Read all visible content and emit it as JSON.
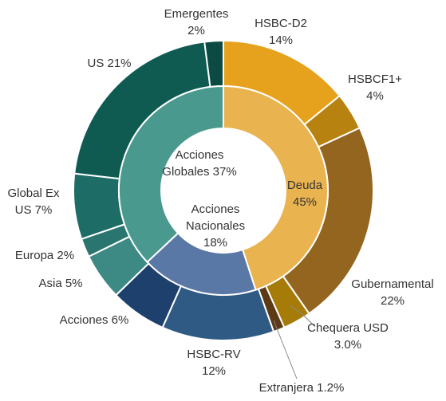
{
  "chart_data": {
    "type": "sunburst",
    "inner": {
      "labels": [
        [
          "Deuda",
          "45%"
        ],
        [
          "Acciones",
          "Nacionales",
          "18%"
        ],
        [
          "Acciones",
          "Globales 37%"
        ]
      ],
      "values": [
        45,
        18,
        37
      ],
      "colors": [
        "#E9B350",
        "#5A78A6",
        "#4A998E"
      ]
    },
    "outer": {
      "labels": [
        [
          "HSBC-D2",
          "14%"
        ],
        [
          "HSBCF1+",
          "4%"
        ],
        [
          "Gubernamental",
          "22%"
        ],
        [
          "Chequera USD",
          "3.0%"
        ],
        [
          "Extranjera 1.2%"
        ],
        [
          "HSBC-RV",
          "12%"
        ],
        [
          "Acciones 6%"
        ],
        [
          "Asia 5%"
        ],
        [
          "Europa 2%"
        ],
        [
          "Global Ex",
          "US 7%"
        ],
        [
          "US 21%"
        ],
        [
          "Emergentes",
          "2%"
        ]
      ],
      "values": [
        14,
        4,
        22,
        3.0,
        1.2,
        12,
        6,
        5,
        2,
        7,
        21,
        2
      ],
      "colors": [
        "#E6A21C",
        "#B7820F",
        "#94651F",
        "#A67B07",
        "#5B3A15",
        "#2E5A84",
        "#1E406D",
        "#3D8983",
        "#2B7571",
        "#1E6C66",
        "#0F5B51",
        "#0C4B43"
      ]
    }
  }
}
